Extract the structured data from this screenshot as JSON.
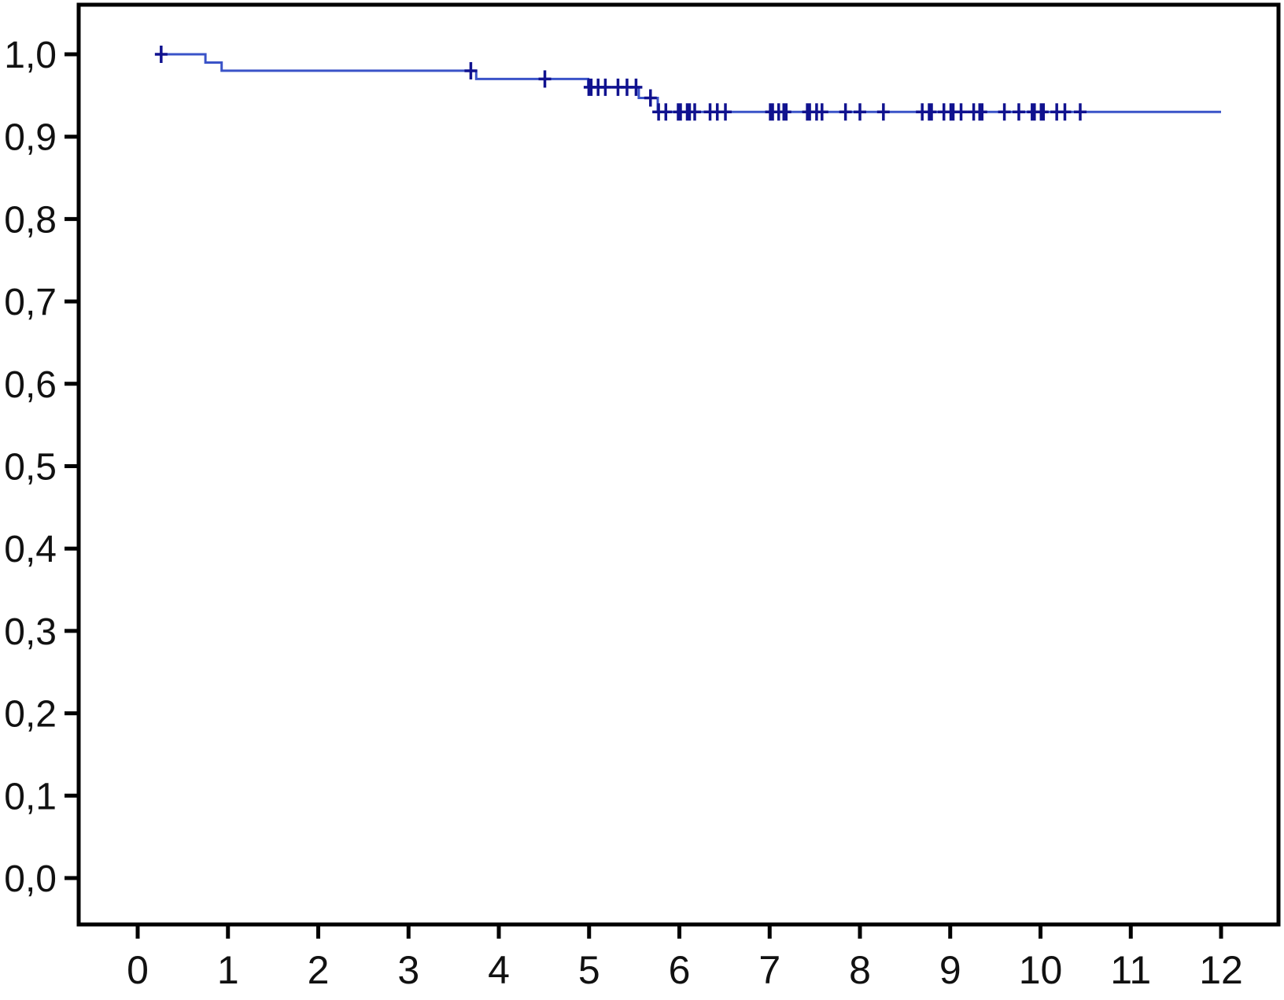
{
  "chart_data": {
    "type": "line",
    "subtype": "kaplan-meier-step-function",
    "title": "",
    "xlabel": "",
    "ylabel": "",
    "xlim": [
      0,
      12
    ],
    "ylim": [
      0.0,
      1.0
    ],
    "grid": false,
    "legend": "none",
    "decimal_separator": ",",
    "frame_color": "#000000",
    "tick_color": "#000000",
    "label_color": "#111111",
    "x_ticks": [
      {
        "v": 0,
        "label": "0"
      },
      {
        "v": 1,
        "label": "1"
      },
      {
        "v": 2,
        "label": "2"
      },
      {
        "v": 3,
        "label": "3"
      },
      {
        "v": 4,
        "label": "4"
      },
      {
        "v": 5,
        "label": "5"
      },
      {
        "v": 6,
        "label": "6"
      },
      {
        "v": 7,
        "label": "7"
      },
      {
        "v": 8,
        "label": "8"
      },
      {
        "v": 9,
        "label": "9"
      },
      {
        "v": 10,
        "label": "10"
      },
      {
        "v": 11,
        "label": "11"
      },
      {
        "v": 12,
        "label": "12"
      }
    ],
    "y_ticks": [
      {
        "v": 1.0,
        "label": "1,0"
      },
      {
        "v": 0.9,
        "label": "0,9"
      },
      {
        "v": 0.8,
        "label": "0,8"
      },
      {
        "v": 0.7,
        "label": "0,7"
      },
      {
        "v": 0.6,
        "label": "0,6"
      },
      {
        "v": 0.5,
        "label": "0,5"
      },
      {
        "v": 0.4,
        "label": "0,4"
      },
      {
        "v": 0.3,
        "label": "0,3"
      },
      {
        "v": 0.2,
        "label": "0,2"
      },
      {
        "v": 0.1,
        "label": "0,1"
      },
      {
        "v": 0.0,
        "label": "0,0"
      }
    ],
    "series": [
      {
        "name": "cumulative-survival",
        "color": "#3a53c8",
        "censor_color": "#10128f",
        "step_points": [
          [
            0.26,
            1.0
          ],
          [
            0.75,
            1.0
          ],
          [
            0.75,
            0.99
          ],
          [
            0.93,
            0.99
          ],
          [
            0.93,
            0.98
          ],
          [
            3.75,
            0.98
          ],
          [
            3.75,
            0.97
          ],
          [
            4.99,
            0.97
          ],
          [
            4.99,
            0.96
          ],
          [
            5.55,
            0.96
          ],
          [
            5.55,
            0.947
          ],
          [
            5.76,
            0.947
          ],
          [
            5.76,
            0.93
          ],
          [
            12.0,
            0.93
          ]
        ],
        "censor_marks": [
          {
            "t": 0.26,
            "s": 1.0
          },
          {
            "t": 3.69,
            "s": 0.98
          },
          {
            "t": 4.51,
            "s": 0.97
          },
          {
            "t": 5.01,
            "s": 0.96,
            "bold": true
          },
          {
            "t": 5.1,
            "s": 0.96
          },
          {
            "t": 5.18,
            "s": 0.96
          },
          {
            "t": 5.32,
            "s": 0.96
          },
          {
            "t": 5.42,
            "s": 0.96
          },
          {
            "t": 5.52,
            "s": 0.96
          },
          {
            "t": 5.68,
            "s": 0.947
          },
          {
            "t": 5.77,
            "s": 0.93
          },
          {
            "t": 5.85,
            "s": 0.93
          },
          {
            "t": 6.0,
            "s": 0.93,
            "bold": true
          },
          {
            "t": 6.1,
            "s": 0.93,
            "bold": true
          },
          {
            "t": 6.17,
            "s": 0.93
          },
          {
            "t": 6.34,
            "s": 0.93
          },
          {
            "t": 6.42,
            "s": 0.93
          },
          {
            "t": 6.51,
            "s": 0.93
          },
          {
            "t": 7.02,
            "s": 0.93,
            "bold": true
          },
          {
            "t": 7.1,
            "s": 0.93
          },
          {
            "t": 7.17,
            "s": 0.93,
            "bold": true
          },
          {
            "t": 7.43,
            "s": 0.93,
            "bold": true
          },
          {
            "t": 7.52,
            "s": 0.93
          },
          {
            "t": 7.58,
            "s": 0.93
          },
          {
            "t": 7.84,
            "s": 0.93
          },
          {
            "t": 8.0,
            "s": 0.93
          },
          {
            "t": 8.26,
            "s": 0.93
          },
          {
            "t": 8.69,
            "s": 0.93
          },
          {
            "t": 8.78,
            "s": 0.93,
            "bold": true
          },
          {
            "t": 8.93,
            "s": 0.93
          },
          {
            "t": 9.02,
            "s": 0.93,
            "bold": true
          },
          {
            "t": 9.12,
            "s": 0.93
          },
          {
            "t": 9.26,
            "s": 0.93
          },
          {
            "t": 9.34,
            "s": 0.93,
            "bold": true
          },
          {
            "t": 9.6,
            "s": 0.93
          },
          {
            "t": 9.76,
            "s": 0.93
          },
          {
            "t": 9.92,
            "s": 0.93,
            "bold": true
          },
          {
            "t": 10.02,
            "s": 0.93,
            "bold": true
          },
          {
            "t": 10.18,
            "s": 0.93
          },
          {
            "t": 10.27,
            "s": 0.93
          },
          {
            "t": 10.44,
            "s": 0.93
          }
        ]
      }
    ]
  }
}
